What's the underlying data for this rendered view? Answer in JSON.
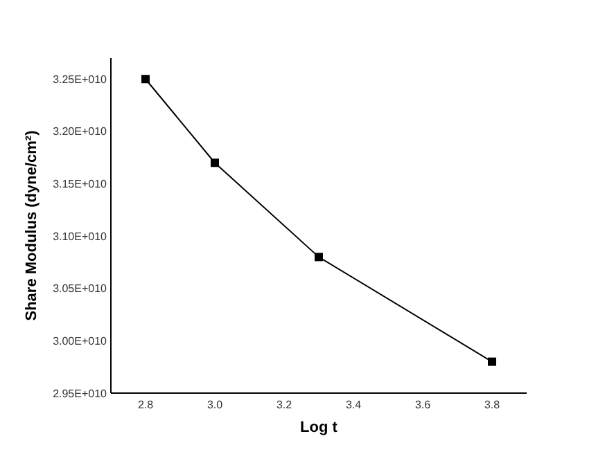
{
  "chart_data": {
    "type": "line",
    "xlabel": "Log t",
    "ylabel": "Share Modulus (dyne/cm²)",
    "x": [
      2.8,
      3.0,
      3.3,
      3.8
    ],
    "series": [
      {
        "color": "#000000",
        "values": [
          32500000000,
          31700000000,
          30800000000,
          29800000000
        ]
      }
    ],
    "marker": "square",
    "line_style": "solid",
    "grid": false,
    "xlim": [
      2.7,
      3.9
    ],
    "xticks": [
      {
        "value": 2.8,
        "label": "2.8"
      },
      {
        "value": 3.0,
        "label": "3.0"
      },
      {
        "value": 3.2,
        "label": "3.2"
      },
      {
        "value": 3.4,
        "label": "3.4"
      },
      {
        "value": 3.6,
        "label": "3.6"
      },
      {
        "value": 3.8,
        "label": "3.8"
      }
    ],
    "ylim": [
      29500000000,
      32700000000
    ],
    "yticks": [
      {
        "value": 29500000000,
        "label": "2.95E+010"
      },
      {
        "value": 30000000000,
        "label": "3.00E+010"
      },
      {
        "value": 30500000000,
        "label": "3.05E+010"
      },
      {
        "value": 31000000000,
        "label": "3.10E+010"
      },
      {
        "value": 31500000000,
        "label": "3.15E+010"
      },
      {
        "value": 32000000000,
        "label": "3.20E+010"
      },
      {
        "value": 32500000000,
        "label": "3.25E+010"
      }
    ]
  }
}
